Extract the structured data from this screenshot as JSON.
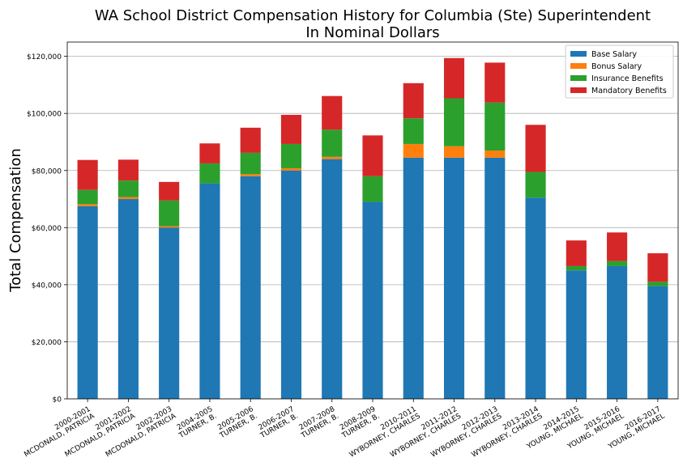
{
  "chart_data": {
    "type": "bar",
    "stacked": true,
    "title": "WA School District Compensation History for Columbia (Ste) Superintendent",
    "subtitle": "In Nominal Dollars",
    "ylabel": "Total Compensation",
    "xlabel": "",
    "ylim": [
      0,
      125000
    ],
    "yticks": [
      0,
      20000,
      40000,
      60000,
      80000,
      100000,
      120000
    ],
    "ytick_labels": [
      "$0",
      "$20,000",
      "$40,000",
      "$60,000",
      "$80,000",
      "$100,000",
      "$120,000"
    ],
    "grid": "horizontal",
    "legend_position": "top-right",
    "categories": [
      [
        "2000-2001",
        "MCDONALD, PATRICIA"
      ],
      [
        "2001-2002",
        "MCDONALD, PATRICIA"
      ],
      [
        "2002-2003",
        "MCDONALD, PATRICIA"
      ],
      [
        "2004-2005",
        "TURNER, B."
      ],
      [
        "2005-2006",
        "TURNER, B."
      ],
      [
        "2006-2007",
        "TURNER, B."
      ],
      [
        "2007-2008",
        "TURNER, B."
      ],
      [
        "2008-2009",
        "TURNER, B."
      ],
      [
        "2010-2011",
        "WYBORNEY, CHARLES"
      ],
      [
        "2011-2012",
        "WYBORNEY, CHARLES"
      ],
      [
        "2012-2013",
        "WYBORNEY, CHARLES"
      ],
      [
        "2013-2014",
        "WYBORNEY, CHARLES"
      ],
      [
        "2014-2015",
        "YOUNG, MICHAEL"
      ],
      [
        "2015-2016",
        "YOUNG, MICHAEL"
      ],
      [
        "2016-2017",
        "YOUNG, MICHAEL"
      ]
    ],
    "series": [
      {
        "name": "Base Salary",
        "color": "#1f77b4",
        "values": [
          67500,
          70000,
          60000,
          75500,
          78000,
          80000,
          84000,
          69000,
          84500,
          84500,
          84500,
          70500,
          45000,
          46500,
          39500
        ]
      },
      {
        "name": "Bonus Salary",
        "color": "#ff7f0e",
        "values": [
          700,
          700,
          500,
          0,
          700,
          800,
          800,
          0,
          4800,
          4000,
          2500,
          0,
          0,
          0,
          0
        ]
      },
      {
        "name": "Insurance Benefits",
        "color": "#2ca02c",
        "values": [
          5000,
          5800,
          9000,
          7000,
          7500,
          8500,
          9500,
          9000,
          9000,
          16800,
          16800,
          9000,
          1500,
          1800,
          1500
        ]
      },
      {
        "name": "Mandatory Benefits",
        "color": "#d62728",
        "values": [
          10500,
          7300,
          6500,
          7000,
          8800,
          10200,
          11800,
          14300,
          12300,
          14100,
          14000,
          16500,
          9000,
          10000,
          10000
        ]
      }
    ]
  }
}
